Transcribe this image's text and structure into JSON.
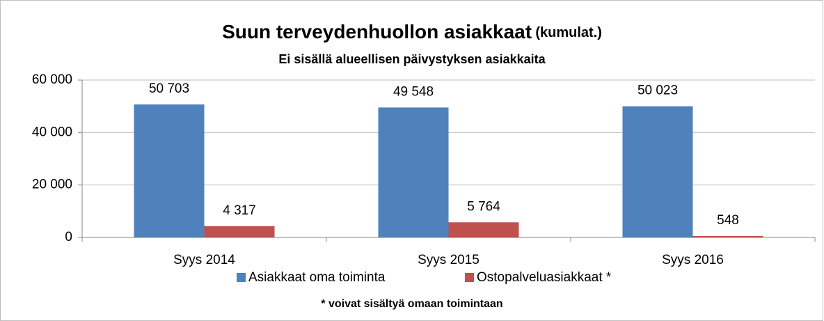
{
  "chart_data": {
    "type": "bar",
    "title": "Suun terveydenhuollon asiakkaat",
    "title_note": "(kumulat.)",
    "subtitle": "Ei sisällä alueellisen päivystyksen asiakkaita",
    "footnote": "* voivat  sisältyä omaan toimintaan",
    "categories": [
      "Syys 2014",
      "Syys 2015",
      "Syys 2016"
    ],
    "series": [
      {
        "name": "Asiakkaat oma toiminta",
        "color": "#4f81bd",
        "values": [
          50703,
          49548,
          50023
        ],
        "value_labels": [
          "50 703",
          "49 548",
          "50 023"
        ]
      },
      {
        "name": "Ostopalveluasiakkaat *",
        "color": "#c0504d",
        "values": [
          4317,
          5764,
          548
        ],
        "value_labels": [
          "4 317",
          "5 764",
          "548"
        ]
      }
    ],
    "ylim": [
      0,
      60000
    ],
    "yticks": [
      0,
      {
        "value": 20000,
        "label": "20 000"
      },
      {
        "value": 40000,
        "label": "40 000"
      },
      {
        "value": 60000,
        "label": "60 000"
      }
    ],
    "grid": true,
    "legend": "bottom"
  }
}
